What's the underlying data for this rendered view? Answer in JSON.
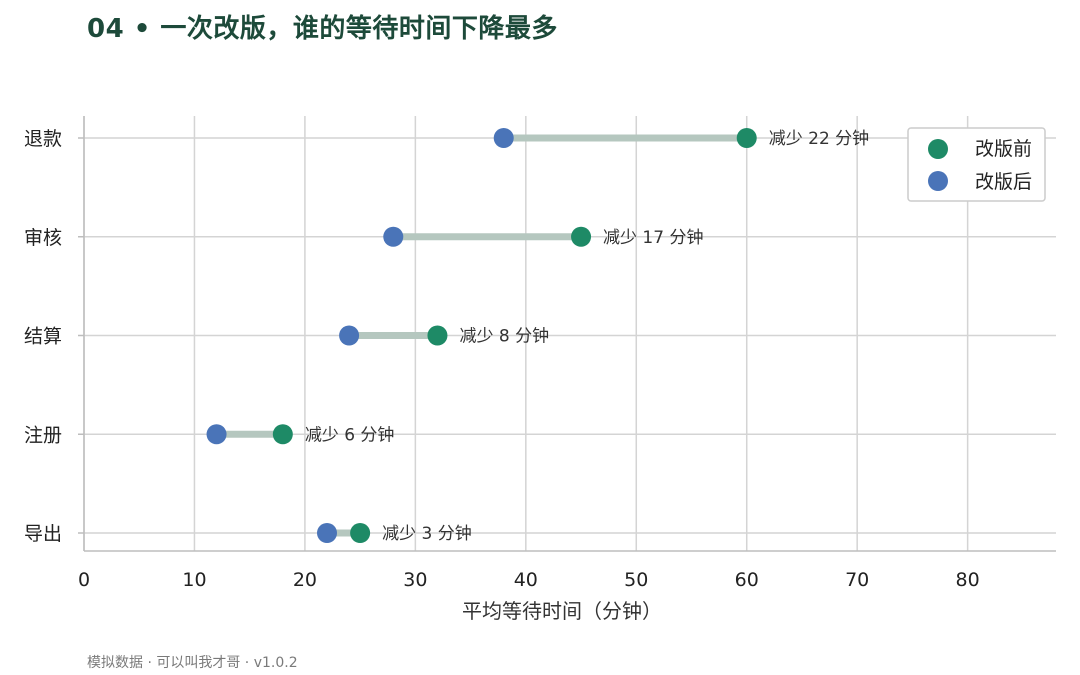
{
  "title": "04 • 一次改版，谁的等待时间下降最多",
  "footer": "模拟数据 · 可以叫我才哥 · v1.0.2",
  "colors": {
    "before": "#1e8a66",
    "after": "#4a74b8",
    "connector": "#b5c7bf",
    "grid": "#d4d4d4",
    "axis": "#bdbdbd"
  },
  "chart_data": {
    "type": "dumbbell",
    "orientation": "horizontal",
    "categories": [
      "退款",
      "审核",
      "结算",
      "注册",
      "导出"
    ],
    "series": [
      {
        "name": "改版前",
        "values": [
          60,
          45,
          32,
          18,
          25
        ]
      },
      {
        "name": "改版后",
        "values": [
          38,
          28,
          24,
          12,
          22
        ]
      }
    ],
    "annotations": [
      "减少 22 分钟",
      "减少 17 分钟",
      "减少 8 分钟",
      "减少 6 分钟",
      "减少 3 分钟"
    ],
    "xlabel": "平均等待时间（分钟）",
    "ylabel": "",
    "xlim": [
      0,
      88
    ],
    "xticks": [
      0,
      10,
      20,
      30,
      40,
      50,
      60,
      70,
      80
    ],
    "grid": true,
    "legend_position": "top-right"
  }
}
